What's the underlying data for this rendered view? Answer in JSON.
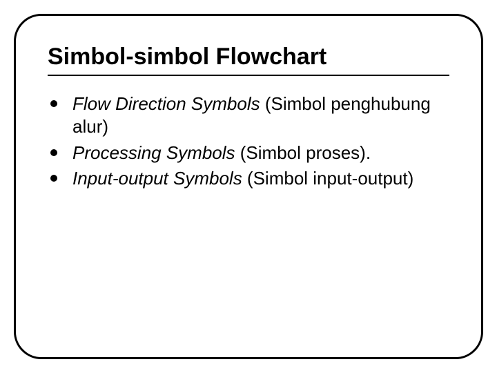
{
  "slide": {
    "title": "Simbol-simbol Flowchart",
    "title_fontsize": 34,
    "title_fontweight": "bold",
    "body_fontsize": 26,
    "frame": {
      "border_color": "#000000",
      "border_width": 3,
      "border_radius": 40,
      "background_color": "#ffffff"
    },
    "bullet": {
      "shape": "circle",
      "color": "#000000",
      "size": 10
    },
    "items": [
      {
        "italic_part": "Flow Direction Symbols ",
        "plain_part": "(Simbol penghubung alur)"
      },
      {
        "italic_part": "Processing Symbols ",
        "plain_part": "(Simbol proses)."
      },
      {
        "italic_part": "Input-output Symbols ",
        "plain_part": "(Simbol input-output)"
      }
    ]
  }
}
